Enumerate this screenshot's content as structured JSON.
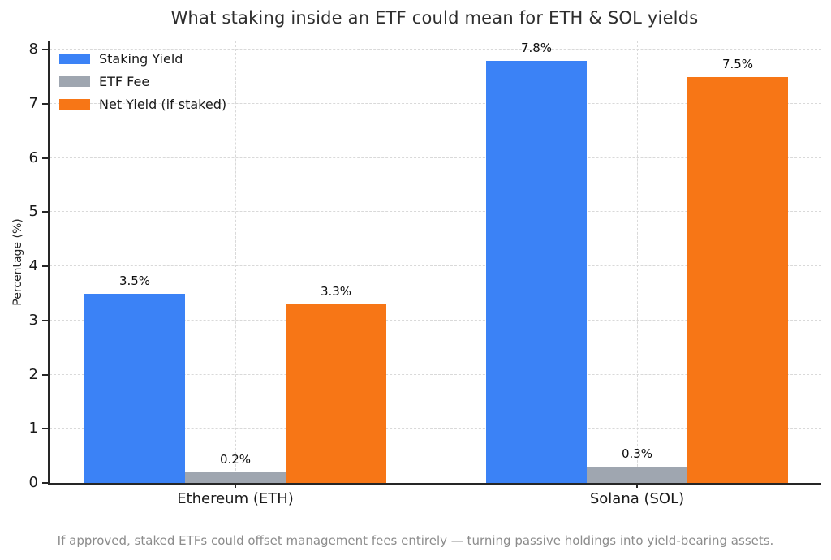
{
  "chart_data": {
    "type": "bar",
    "title": "What staking inside an ETF could mean for ETH & SOL yields",
    "xlabel": "",
    "ylabel": "Percentage (%)",
    "categories": [
      "Ethereum (ETH)",
      "Solana (SOL)"
    ],
    "series": [
      {
        "name": "Staking Yield",
        "color": "#3b82f6",
        "values": [
          3.5,
          7.8
        ],
        "labels": [
          "3.5%",
          "7.8%"
        ]
      },
      {
        "name": "ETF Fee",
        "color": "#9fa6b0",
        "values": [
          0.2,
          0.3
        ],
        "labels": [
          "0.2%",
          "0.3%"
        ]
      },
      {
        "name": "Net Yield (if staked)",
        "color": "#f77616",
        "values": [
          3.3,
          7.5
        ],
        "labels": [
          "3.3%",
          "7.5%"
        ]
      }
    ],
    "yticks": [
      0,
      1,
      2,
      3,
      4,
      5,
      6,
      7,
      8
    ],
    "ylim": [
      0,
      8.2
    ],
    "grid": true,
    "grid_style": "dashed",
    "legend_position": "upper-left",
    "annotation": "If approved, staked ETFs could offset management fees entirely — turning passive holdings into yield-bearing assets."
  }
}
